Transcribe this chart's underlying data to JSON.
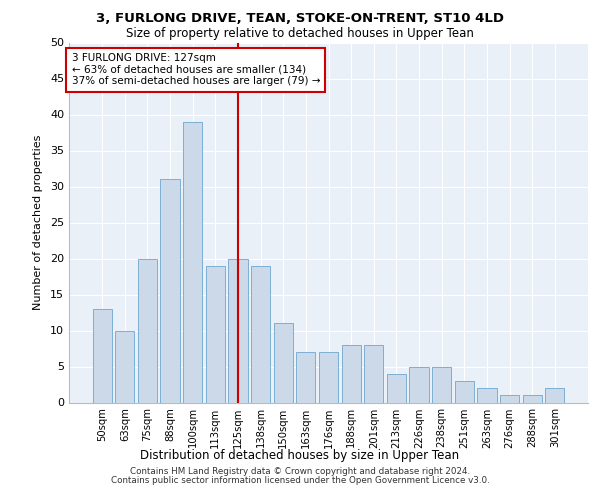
{
  "title": "3, FURLONG DRIVE, TEAN, STOKE-ON-TRENT, ST10 4LD",
  "subtitle": "Size of property relative to detached houses in Upper Tean",
  "xlabel": "Distribution of detached houses by size in Upper Tean",
  "ylabel": "Number of detached properties",
  "bar_color": "#ccd9e8",
  "bar_edge_color": "#7bafd4",
  "bg_color": "#eaf0f8",
  "annotation_box_color": "#cc0000",
  "vline_color": "#cc0000",
  "vline_x_index": 6,
  "annotation_lines": [
    "3 FURLONG DRIVE: 127sqm",
    "← 63% of detached houses are smaller (134)",
    "37% of semi-detached houses are larger (79) →"
  ],
  "categories": [
    "50sqm",
    "63sqm",
    "75sqm",
    "88sqm",
    "100sqm",
    "113sqm",
    "125sqm",
    "138sqm",
    "150sqm",
    "163sqm",
    "176sqm",
    "188sqm",
    "201sqm",
    "213sqm",
    "226sqm",
    "238sqm",
    "251sqm",
    "263sqm",
    "276sqm",
    "288sqm",
    "301sqm"
  ],
  "values": [
    13,
    10,
    20,
    31,
    39,
    19,
    20,
    19,
    11,
    7,
    7,
    8,
    8,
    4,
    5,
    5,
    3,
    2,
    1,
    1,
    2
  ],
  "ylim": [
    0,
    50
  ],
  "yticks": [
    0,
    5,
    10,
    15,
    20,
    25,
    30,
    35,
    40,
    45,
    50
  ],
  "footer_line1": "Contains HM Land Registry data © Crown copyright and database right 2024.",
  "footer_line2": "Contains public sector information licensed under the Open Government Licence v3.0."
}
